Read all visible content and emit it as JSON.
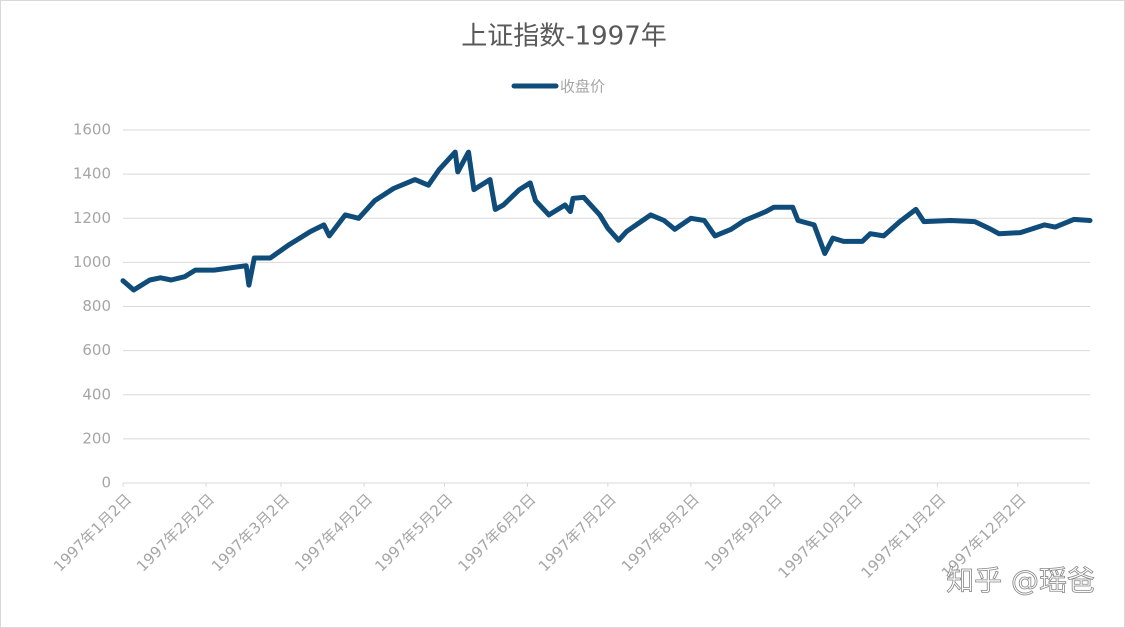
{
  "chart_data": {
    "type": "line",
    "title": "上证指数-1997年",
    "watermark": "知乎 @瑶爸",
    "x": [
      "1997-01-02",
      "1997-01-06",
      "1997-01-12",
      "1997-01-16",
      "1997-01-20",
      "1997-01-25",
      "1997-01-29",
      "1997-02-05",
      "1997-02-17",
      "1997-02-18",
      "1997-02-20",
      "1997-02-26",
      "1997-03-05",
      "1997-03-13",
      "1997-03-18",
      "1997-03-20",
      "1997-03-26",
      "1997-03-31",
      "1997-04-06",
      "1997-04-13",
      "1997-04-21",
      "1997-04-26",
      "1997-04-30",
      "1997-05-06",
      "1997-05-07",
      "1997-05-11",
      "1997-05-13",
      "1997-05-19",
      "1997-05-21",
      "1997-05-24",
      "1997-05-30",
      "1997-06-03",
      "1997-06-05",
      "1997-06-10",
      "1997-06-16",
      "1997-06-18",
      "1997-06-19",
      "1997-06-23",
      "1997-06-29",
      "1997-07-02",
      "1997-07-06",
      "1997-07-09",
      "1997-07-18",
      "1997-07-23",
      "1997-07-27",
      "1997-08-02",
      "1997-08-07",
      "1997-08-11",
      "1997-08-17",
      "1997-08-22",
      "1997-08-30",
      "1997-09-02",
      "1997-09-09",
      "1997-09-11",
      "1997-09-17",
      "1997-09-21",
      "1997-09-24",
      "1997-09-28",
      "1997-10-05",
      "1997-10-08",
      "1997-10-13",
      "1997-10-19",
      "1997-10-25",
      "1997-10-28",
      "1997-11-07",
      "1997-11-16",
      "1997-11-22",
      "1997-11-25",
      "1997-12-03",
      "1997-12-12",
      "1997-12-16",
      "1997-12-23",
      "1997-12-29"
    ],
    "series": [
      {
        "name": "收盘价",
        "color": "#0f4c7a",
        "values": [
          917,
          875,
          920,
          930,
          920,
          935,
          965,
          965,
          985,
          897,
          1020,
          1020,
          1080,
          1140,
          1170,
          1120,
          1215,
          1200,
          1280,
          1335,
          1375,
          1350,
          1420,
          1500,
          1410,
          1500,
          1330,
          1375,
          1240,
          1260,
          1330,
          1360,
          1280,
          1215,
          1260,
          1230,
          1290,
          1295,
          1215,
          1155,
          1100,
          1140,
          1215,
          1190,
          1150,
          1200,
          1190,
          1120,
          1150,
          1190,
          1230,
          1250,
          1250,
          1190,
          1170,
          1040,
          1110,
          1095,
          1095,
          1130,
          1120,
          1185,
          1240,
          1185,
          1190,
          1185,
          1150,
          1130,
          1135,
          1170,
          1160,
          1195,
          1190
        ]
      }
    ],
    "xlim": [
      "1997-01-02",
      "1997-12-29"
    ],
    "xticks": [
      {
        "value": "1997-01-02",
        "label": "1997年1月2日"
      },
      {
        "value": "1997-02-02",
        "label": "1997年2月2日"
      },
      {
        "value": "1997-03-02",
        "label": "1997年3月2日"
      },
      {
        "value": "1997-04-02",
        "label": "1997年4月2日"
      },
      {
        "value": "1997-05-02",
        "label": "1997年5月2日"
      },
      {
        "value": "1997-06-02",
        "label": "1997年6月2日"
      },
      {
        "value": "1997-07-02",
        "label": "1997年7月2日"
      },
      {
        "value": "1997-08-02",
        "label": "1997年8月2日"
      },
      {
        "value": "1997-09-02",
        "label": "1997年9月2日"
      },
      {
        "value": "1997-10-02",
        "label": "1997年10月2日"
      },
      {
        "value": "1997-11-02",
        "label": "1997年11月2日"
      },
      {
        "value": "1997-12-02",
        "label": "1997年12月2日"
      }
    ],
    "ylim": [
      0,
      1600
    ],
    "yticks": [
      0,
      200,
      400,
      600,
      800,
      1000,
      1200,
      1400,
      1600
    ],
    "grid": true,
    "legend": "top"
  }
}
